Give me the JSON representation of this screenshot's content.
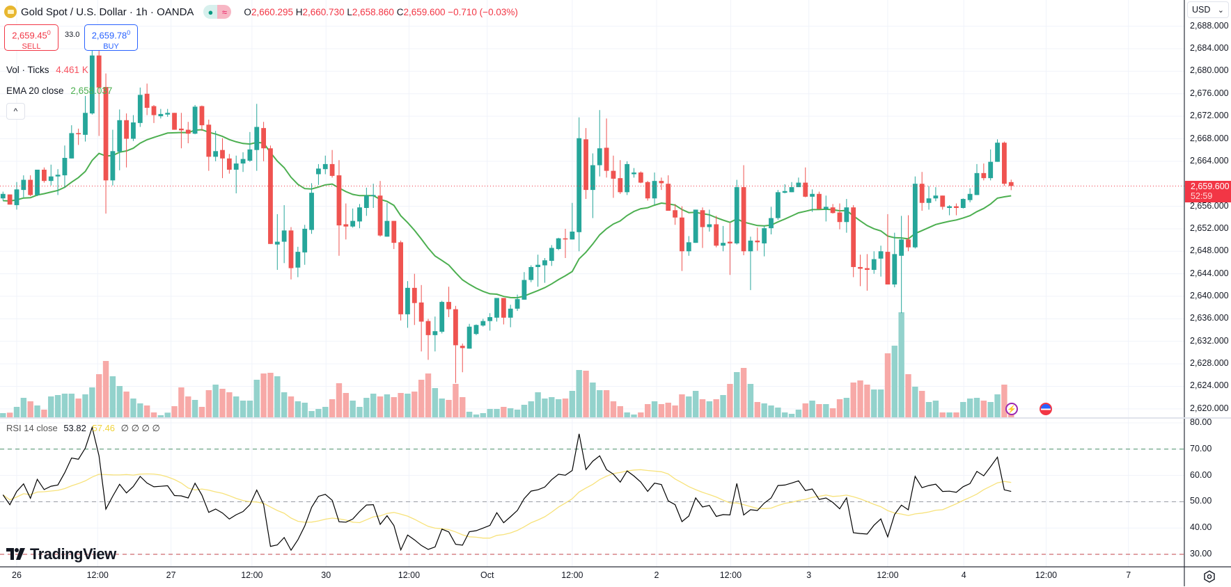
{
  "header": {
    "symbol_title": "Gold Spot / U.S. Dollar · 1h · OANDA",
    "market_status_icon": "dot-icon",
    "data_status_icon": "wave-icon",
    "ohlc": {
      "o_label": "O",
      "open": "2,660.295",
      "h_label": "H",
      "high": "2,660.730",
      "l_label": "L",
      "low": "2,658.860",
      "c_label": "C",
      "close": "2,659.600",
      "change": "−0.710 (−0.03%)"
    }
  },
  "trade": {
    "sell_price": "2,659.45",
    "sell_price_sup": "0",
    "sell_label": "SELL",
    "spread": "33.0",
    "buy_price": "2,659.78",
    "buy_price_sup": "0",
    "buy_label": "BUY"
  },
  "legends": {
    "volume_label": "Vol · Ticks",
    "volume_value": "4.461 K",
    "ema_label": "EMA 20 close",
    "ema_value": "2,658.037",
    "collapse_icon": "^",
    "rsi_label": "RSI 14 close",
    "rsi_value": "53.82",
    "rsi_ma_value": "57.46",
    "rsi_empty_values": "∅  ∅  ∅  ∅"
  },
  "price_axis": {
    "currency": "USD",
    "currency_chevron": "⌄",
    "ticks": [
      "2,688.000",
      "2,684.000",
      "2,680.000",
      "2,676.000",
      "2,672.000",
      "2,668.000",
      "2,664.000",
      "2,656.000",
      "2,652.000",
      "2,648.000",
      "2,644.000",
      "2,640.000",
      "2,636.000",
      "2,632.000",
      "2,628.000",
      "2,624.000",
      "2,620.000"
    ],
    "last_price": "2,659.600",
    "countdown": "52:59"
  },
  "rsi_axis": {
    "ticks": [
      "80.00",
      "70.00",
      "60.00",
      "50.00",
      "40.00",
      "30.00"
    ]
  },
  "time_axis": {
    "ticks": [
      {
        "label": "26",
        "bar": 2.0
      },
      {
        "label": "12:00",
        "bar": 13.8
      },
      {
        "label": "27",
        "bar": 24.5
      },
      {
        "label": "12:00",
        "bar": 36.3
      },
      {
        "label": "30",
        "bar": 47.1
      },
      {
        "label": "12:00",
        "bar": 59.2
      },
      {
        "label": "Oct",
        "bar": 70.6
      },
      {
        "label": "12:00",
        "bar": 83.0
      },
      {
        "label": "2",
        "bar": 95.3
      },
      {
        "label": "12:00",
        "bar": 106.1
      },
      {
        "label": "3",
        "bar": 117.5
      },
      {
        "label": "12:00",
        "bar": 129.0
      },
      {
        "label": "4",
        "bar": 140.1
      },
      {
        "label": "12:00",
        "bar": 152.1
      },
      {
        "label": "7",
        "bar": 164.1
      }
    ]
  },
  "branding": {
    "logo_text": "TradingView"
  },
  "events": {
    "lightning_icon": "lightning-icon",
    "us_flag_icon": "us-flag-icon"
  },
  "colors": {
    "up": "#26a69a",
    "down": "#ef5350",
    "volume_up": "#93d2cc",
    "volume_down": "#f7a9a7",
    "ema": "#4caf50",
    "rsi": "#000000",
    "rsi_ma": "#f7e27a",
    "last_price": "#f23645"
  },
  "chart_data": {
    "type": "candlestick",
    "title": "Gold Spot / U.S. Dollar · 1h · OANDA",
    "interval": "1h",
    "ylim": [
      2617,
      2692
    ],
    "ylabel": "USD",
    "grid": true,
    "candles_ohlc": [
      [
        2657.4,
        2658.6,
        2657.0,
        2658.2
      ],
      [
        2658.1,
        2658.1,
        2656.3,
        2656.3
      ],
      [
        2656.2,
        2660.3,
        2655.4,
        2659.0
      ],
      [
        2658.9,
        2661.5,
        2657.6,
        2660.7
      ],
      [
        2660.7,
        2661.5,
        2657.8,
        2658.0
      ],
      [
        2658.0,
        2662.5,
        2657.8,
        2662.5
      ],
      [
        2662.5,
        2662.9,
        2660.2,
        2660.5
      ],
      [
        2660.5,
        2663.4,
        2659.7,
        2661.3
      ],
      [
        2661.3,
        2662.6,
        2658.0,
        2661.6
      ],
      [
        2661.5,
        2666.8,
        2659.3,
        2664.6
      ],
      [
        2664.5,
        2670.4,
        2664.5,
        2669.0
      ],
      [
        2669.0,
        2669.8,
        2666.9,
        2668.8
      ],
      [
        2668.7,
        2675.6,
        2667.5,
        2672.6
      ],
      [
        2672.5,
        2684.6,
        2672.3,
        2682.8
      ],
      [
        2682.8,
        2684.1,
        2668.5,
        2677.1
      ],
      [
        2677.2,
        2679.6,
        2654.7,
        2660.6
      ],
      [
        2660.6,
        2669.6,
        2659.7,
        2665.8
      ],
      [
        2665.7,
        2673.2,
        2662.4,
        2671.3
      ],
      [
        2671.3,
        2672.5,
        2662.9,
        2668.0
      ],
      [
        2668.0,
        2672.2,
        2667.6,
        2670.9
      ],
      [
        2670.8,
        2677.1,
        2670.1,
        2675.8
      ],
      [
        2676.0,
        2677.8,
        2672.2,
        2673.5
      ],
      [
        2673.8,
        2674.0,
        2670.8,
        2672.2
      ],
      [
        2672.0,
        2673.3,
        2671.6,
        2672.4
      ],
      [
        2672.3,
        2673.3,
        2671.9,
        2672.6
      ],
      [
        2672.6,
        2672.6,
        2669.6,
        2669.6
      ],
      [
        2669.8,
        2672.6,
        2666.3,
        2669.5
      ],
      [
        2669.6,
        2671.0,
        2667.2,
        2668.9
      ],
      [
        2668.9,
        2674.0,
        2668.8,
        2673.7
      ],
      [
        2673.8,
        2673.9,
        2669.4,
        2670.4
      ],
      [
        2670.5,
        2671.4,
        2662.3,
        2664.8
      ],
      [
        2664.8,
        2669.4,
        2664.0,
        2665.8
      ],
      [
        2666.0,
        2668.1,
        2661.0,
        2664.5
      ],
      [
        2664.5,
        2665.3,
        2661.8,
        2662.5
      ],
      [
        2662.5,
        2665.0,
        2658.3,
        2663.6
      ],
      [
        2663.6,
        2665.6,
        2662.1,
        2664.4
      ],
      [
        2664.1,
        2669.2,
        2663.9,
        2666.1
      ],
      [
        2666.0,
        2674.2,
        2662.3,
        2670.1
      ],
      [
        2669.9,
        2671.0,
        2664.0,
        2666.3
      ],
      [
        2666.3,
        2666.8,
        2649.3,
        2649.3
      ],
      [
        2649.2,
        2654.6,
        2644.7,
        2649.7
      ],
      [
        2649.7,
        2656.2,
        2645.9,
        2651.7
      ],
      [
        2651.7,
        2652.3,
        2643.0,
        2645.0
      ],
      [
        2645.1,
        2648.8,
        2643.4,
        2647.9
      ],
      [
        2647.8,
        2652.7,
        2645.6,
        2652.0
      ],
      [
        2651.8,
        2660.1,
        2651.1,
        2658.4
      ],
      [
        2661.7,
        2663.5,
        2659.8,
        2662.7
      ],
      [
        2662.6,
        2665.0,
        2661.7,
        2663.5
      ],
      [
        2663.5,
        2666.0,
        2661.1,
        2661.4
      ],
      [
        2661.5,
        2664.2,
        2647.2,
        2652.6
      ],
      [
        2652.8,
        2656.5,
        2650.1,
        2652.4
      ],
      [
        2652.4,
        2655.6,
        2652.2,
        2653.4
      ],
      [
        2653.3,
        2656.4,
        2652.1,
        2655.8
      ],
      [
        2655.7,
        2659.3,
        2654.3,
        2657.9
      ],
      [
        2657.8,
        2660.0,
        2655.7,
        2658.0
      ],
      [
        2657.9,
        2660.5,
        2650.6,
        2650.8
      ],
      [
        2650.6,
        2656.6,
        2650.6,
        2653.4
      ],
      [
        2653.4,
        2653.4,
        2648.4,
        2649.5
      ],
      [
        2649.6,
        2649.9,
        2635.7,
        2636.8
      ],
      [
        2636.8,
        2642.7,
        2634.4,
        2641.5
      ],
      [
        2641.5,
        2644.0,
        2634.9,
        2638.8
      ],
      [
        2638.9,
        2642.0,
        2630.2,
        2635.5
      ],
      [
        2635.6,
        2636.0,
        2628.7,
        2633.1
      ],
      [
        2633.1,
        2636.4,
        2630.2,
        2633.8
      ],
      [
        2633.7,
        2639.2,
        2633.4,
        2639.0
      ],
      [
        2639.0,
        2641.7,
        2636.3,
        2637.7
      ],
      [
        2637.7,
        2638.3,
        2624.6,
        2631.3
      ],
      [
        2631.2,
        2631.6,
        2626.5,
        2630.8
      ],
      [
        2630.7,
        2635.1,
        2630.7,
        2634.6
      ],
      [
        2633.3,
        2635.0,
        2633.1,
        2634.9
      ],
      [
        2634.8,
        2636.0,
        2634.6,
        2635.6
      ],
      [
        2635.6,
        2637.0,
        2633.9,
        2636.3
      ],
      [
        2636.2,
        2639.7,
        2635.5,
        2639.7
      ],
      [
        2639.7,
        2639.7,
        2635.0,
        2636.2
      ],
      [
        2636.2,
        2638.5,
        2634.5,
        2637.8
      ],
      [
        2637.8,
        2640.3,
        2637.4,
        2639.5
      ],
      [
        2639.4,
        2644.3,
        2639.4,
        2642.9
      ],
      [
        2642.9,
        2645.5,
        2642.5,
        2645.2
      ],
      [
        2645.2,
        2647.4,
        2641.7,
        2645.6
      ],
      [
        2645.5,
        2646.8,
        2642.4,
        2646.4
      ],
      [
        2646.3,
        2649.1,
        2645.4,
        2648.6
      ],
      [
        2648.4,
        2650.4,
        2648.2,
        2650.3
      ],
      [
        2650.3,
        2652.0,
        2646.8,
        2650.1
      ],
      [
        2650.1,
        2656.6,
        2650.1,
        2651.5
      ],
      [
        2651.4,
        2671.8,
        2648.0,
        2668.1
      ],
      [
        2667.9,
        2669.9,
        2657.3,
        2658.9
      ],
      [
        2658.9,
        2665.4,
        2653.9,
        2663.3
      ],
      [
        2663.3,
        2673.1,
        2661.3,
        2666.3
      ],
      [
        2666.4,
        2671.6,
        2661.1,
        2662.3
      ],
      [
        2662.3,
        2665.0,
        2657.5,
        2660.9
      ],
      [
        2661.0,
        2664.2,
        2658.2,
        2658.5
      ],
      [
        2658.5,
        2664.0,
        2658.0,
        2663.5
      ],
      [
        2661.7,
        2662.8,
        2661.1,
        2662.0
      ],
      [
        2662.0,
        2662.2,
        2660.1,
        2660.2
      ],
      [
        2660.3,
        2660.5,
        2657.0,
        2657.4
      ],
      [
        2657.4,
        2662.0,
        2656.3,
        2660.5
      ],
      [
        2660.5,
        2661.1,
        2658.9,
        2660.1
      ],
      [
        2660.0,
        2661.5,
        2655.2,
        2655.2
      ],
      [
        2655.3,
        2656.4,
        2652.7,
        2654.0
      ],
      [
        2654.0,
        2656.0,
        2644.5,
        2648.0
      ],
      [
        2648.0,
        2650.7,
        2647.2,
        2649.6
      ],
      [
        2649.5,
        2655.4,
        2649.5,
        2655.4
      ],
      [
        2655.3,
        2655.8,
        2648.6,
        2652.3
      ],
      [
        2652.3,
        2655.4,
        2651.5,
        2652.8
      ],
      [
        2652.8,
        2654.3,
        2648.7,
        2649.0
      ],
      [
        2649.0,
        2652.5,
        2648.0,
        2649.5
      ],
      [
        2649.7,
        2653.0,
        2643.8,
        2649.4
      ],
      [
        2649.4,
        2660.7,
        2649.2,
        2659.4
      ],
      [
        2659.4,
        2663.3,
        2647.3,
        2648.0
      ],
      [
        2648.0,
        2650.6,
        2641.1,
        2649.9
      ],
      [
        2649.9,
        2652.2,
        2648.1,
        2649.6
      ],
      [
        2649.4,
        2652.6,
        2647.1,
        2652.1
      ],
      [
        2652.1,
        2655.9,
        2651.0,
        2653.9
      ],
      [
        2653.9,
        2658.9,
        2653.6,
        2658.5
      ],
      [
        2658.4,
        2659.9,
        2658.3,
        2658.7
      ],
      [
        2658.5,
        2660.3,
        2658.5,
        2659.4
      ],
      [
        2659.4,
        2661.1,
        2659.4,
        2660.2
      ],
      [
        2660.2,
        2662.9,
        2657.6,
        2657.7
      ],
      [
        2657.7,
        2659.0,
        2655.0,
        2658.2
      ],
      [
        2658.2,
        2658.6,
        2655.5,
        2655.5
      ],
      [
        2655.5,
        2657.9,
        2653.3,
        2655.9
      ],
      [
        2655.8,
        2656.4,
        2654.7,
        2654.8
      ],
      [
        2654.9,
        2656.5,
        2651.9,
        2653.2
      ],
      [
        2653.2,
        2657.3,
        2651.3,
        2655.8
      ],
      [
        2655.8,
        2656.2,
        2643.4,
        2645.2
      ],
      [
        2645.2,
        2647.4,
        2641.8,
        2644.9
      ],
      [
        2645.0,
        2647.5,
        2641.0,
        2644.7
      ],
      [
        2644.7,
        2648.0,
        2644.0,
        2646.6
      ],
      [
        2646.7,
        2649.0,
        2643.5,
        2648.0
      ],
      [
        2647.9,
        2654.6,
        2642.1,
        2642.1
      ],
      [
        2642.1,
        2651.3,
        2641.6,
        2647.5
      ],
      [
        2647.2,
        2654.3,
        2637.0,
        2650.1
      ],
      [
        2650.1,
        2654.4,
        2648.0,
        2648.7
      ],
      [
        2648.7,
        2661.3,
        2648.5,
        2660.0
      ],
      [
        2660.0,
        2662.1,
        2655.2,
        2656.6
      ],
      [
        2656.6,
        2659.6,
        2655.4,
        2657.4
      ],
      [
        2657.4,
        2659.4,
        2656.9,
        2657.9
      ],
      [
        2657.9,
        2657.9,
        2655.4,
        2655.9
      ],
      [
        2655.7,
        2656.2,
        2654.4,
        2656.0
      ],
      [
        2656.0,
        2656.5,
        2654.4,
        2655.7
      ],
      [
        2655.7,
        2657.4,
        2655.6,
        2657.3
      ],
      [
        2657.1,
        2659.2,
        2656.7,
        2658.2
      ],
      [
        2658.0,
        2663.5,
        2658.0,
        2661.9
      ],
      [
        2661.9,
        2663.6,
        2660.6,
        2661.0
      ],
      [
        2661.0,
        2666.1,
        2660.6,
        2663.9
      ],
      [
        2663.9,
        2667.9,
        2663.9,
        2667.3
      ],
      [
        2667.3,
        2667.5,
        2659.6,
        2660.0
      ],
      [
        2660.295,
        2660.73,
        2658.86,
        2659.6
      ]
    ],
    "volume_k": [
      6,
      6.7,
      15,
      28,
      23,
      17,
      11,
      30,
      32,
      34,
      34,
      27,
      33,
      43,
      62,
      81,
      59,
      45,
      37,
      27,
      20,
      17,
      7,
      3,
      6.7,
      16,
      43,
      30,
      25,
      15,
      39,
      47,
      41,
      36,
      30,
      24,
      24,
      54,
      63,
      64,
      59,
      36,
      30,
      23,
      21,
      9,
      12,
      15,
      26,
      49,
      35,
      24,
      15,
      28,
      34,
      30,
      33,
      29,
      35,
      34,
      37,
      54,
      63,
      42,
      27,
      25,
      48,
      29,
      8,
      4,
      6,
      12,
      12,
      15,
      13,
      11,
      18,
      23,
      36,
      27,
      29,
      26,
      27,
      38,
      68,
      67,
      50,
      39,
      39,
      23,
      16,
      7,
      4,
      7,
      19,
      23,
      19,
      21,
      17,
      33,
      30,
      38,
      26,
      23,
      26,
      32,
      48,
      65,
      71,
      48,
      22,
      20,
      17,
      14,
      7,
      5,
      11,
      20,
      24,
      19,
      19,
      13,
      26,
      28,
      50,
      53,
      47,
      40,
      40,
      92,
      103,
      151,
      62,
      44,
      38,
      22,
      24,
      7,
      7,
      7,
      22,
      27,
      28,
      24,
      22,
      33,
      47,
      4.461
    ],
    "indicators": {
      "ema": {
        "length": 20,
        "source": "close",
        "seed": 2657.0
      },
      "rsi": {
        "length": 14,
        "source": "close",
        "ma_length": 14,
        "ylim": [
          25,
          81
        ],
        "levels": [
          70,
          50,
          30
        ]
      }
    }
  }
}
